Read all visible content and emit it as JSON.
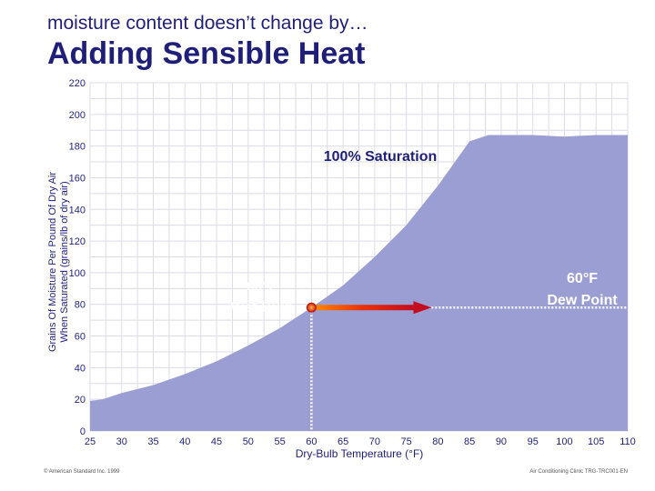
{
  "header": {
    "subtitle": "moisture content doesn’t change by…",
    "title": "Adding Sensible Heat"
  },
  "footer": {
    "left": "© American Standard Inc. 1999",
    "right": "Air Conditioning Clinic TRG-TRC001-EN"
  },
  "chart_data": {
    "type": "area",
    "xlabel": "Dry-Bulb Temperature (°F)",
    "ylabel_line1": "Grains Of Moisture Per Pound Of Dry Air",
    "ylabel_line2": "When Saturated (grains/lb of dry air)",
    "xlim": [
      25,
      110
    ],
    "ylim": [
      0,
      220
    ],
    "grid": true,
    "x_ticks": [
      25,
      30,
      35,
      40,
      45,
      50,
      55,
      60,
      65,
      70,
      75,
      80,
      85,
      90,
      95,
      100,
      105,
      110
    ],
    "y_ticks": [
      0,
      20,
      40,
      60,
      80,
      100,
      120,
      140,
      160,
      180,
      200,
      220
    ],
    "series": [
      {
        "x": [
          25,
          27,
          30,
          35,
          40,
          45,
          50,
          55,
          60,
          65,
          70,
          75,
          80,
          85,
          88,
          90,
          95,
          100,
          105,
          110
        ],
        "values": [
          19,
          20,
          24,
          29,
          36,
          44,
          54,
          65,
          78,
          92,
          110,
          130,
          155,
          183,
          187,
          187,
          187,
          186,
          187,
          187
        ]
      }
    ],
    "colors": {
      "area": "#9b9ed2",
      "grid": "#dcdce6",
      "text": "#1f1f7a"
    },
    "annotations": {
      "saturation": "100% Saturation",
      "wet_bulb_line1": "60°F",
      "wet_bulb_line2": "Wet Bulb",
      "dew_point_line1": "60°F",
      "dew_point_line2": "Dew Point"
    },
    "state_point": {
      "x": 60,
      "y": 78
    },
    "process_arrow": {
      "x_start": 60,
      "x_end": 79,
      "y": 78
    },
    "dew_point_line": {
      "y": 78,
      "x_start": 60,
      "x_end": 110
    },
    "wet_bulb_drop": {
      "x": 60,
      "y_start": 0,
      "y_end": 78
    }
  }
}
